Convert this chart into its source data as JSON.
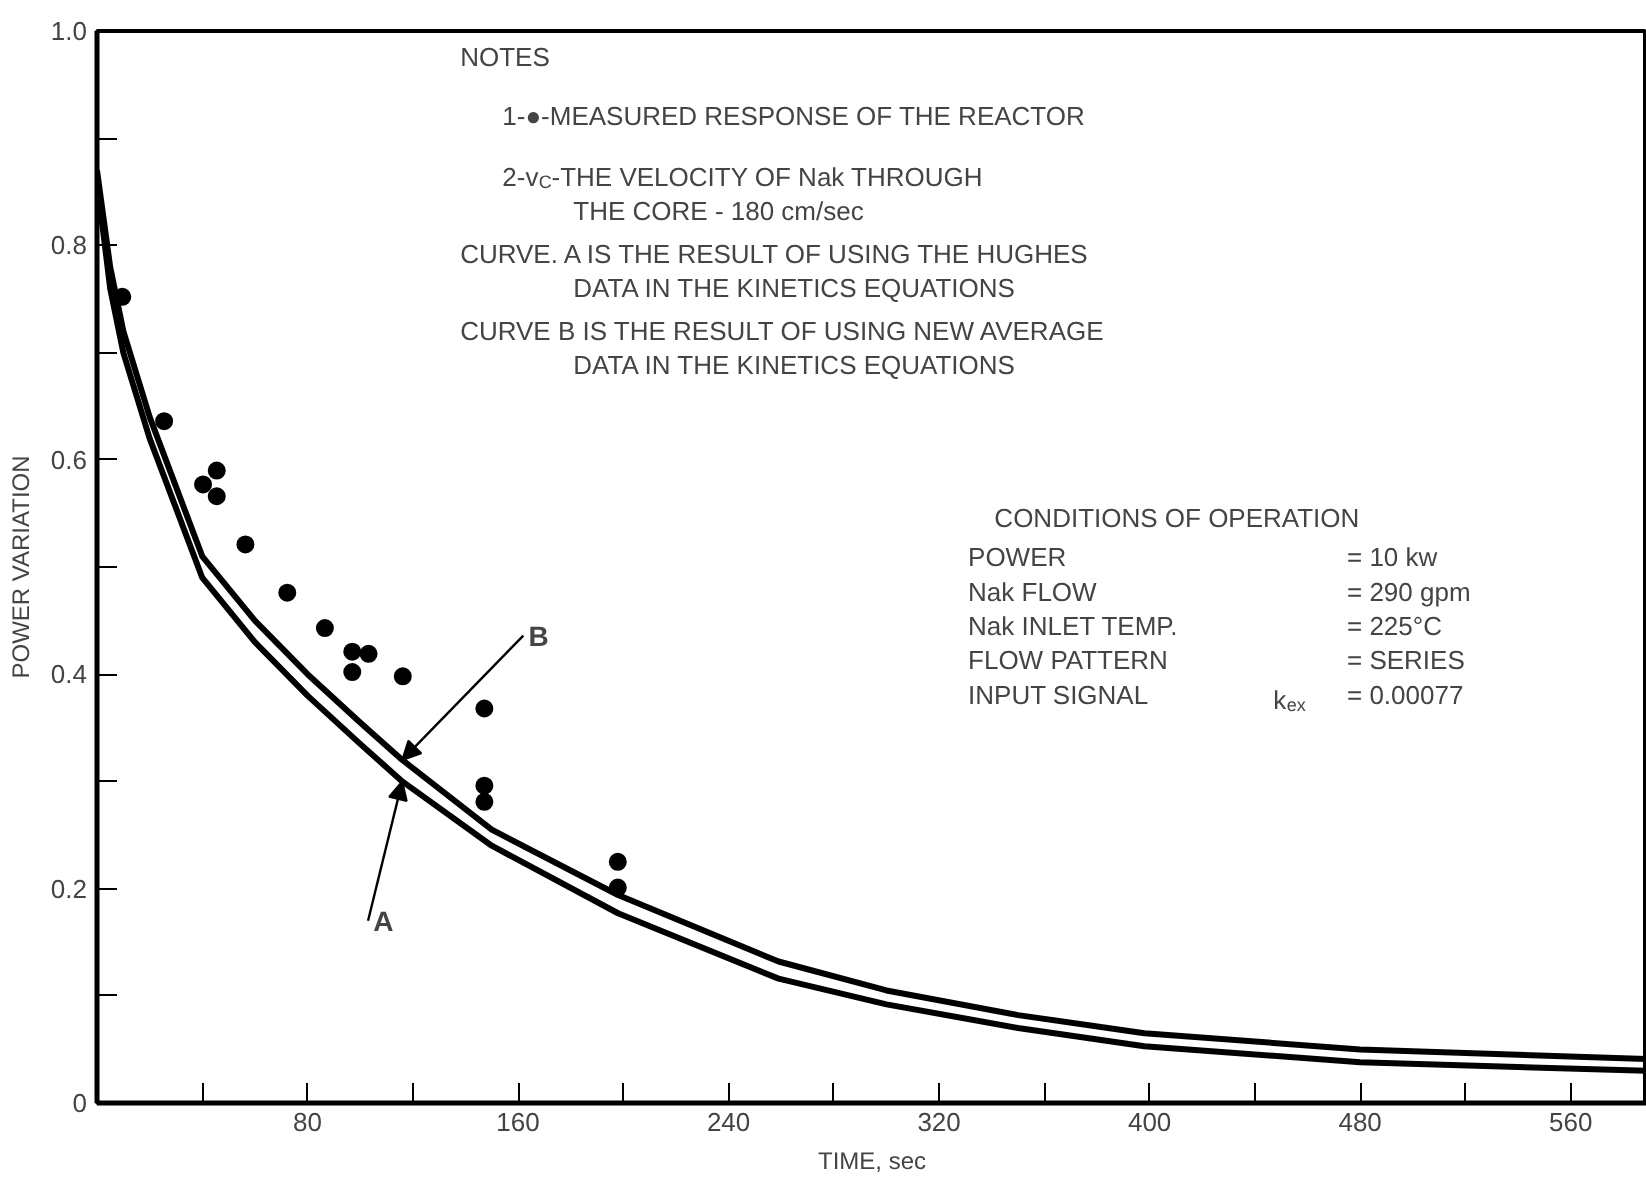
{
  "chart_data": {
    "type": "line",
    "xlabel": "TIME, sec",
    "ylabel": "POWER VARIATION",
    "xlim": [
      0,
      589
    ],
    "ylim": [
      0,
      1.0
    ],
    "xticks": [
      {
        "value": 40,
        "label": null
      },
      80,
      {
        "value": 120,
        "label": null
      },
      160,
      {
        "value": 200,
        "label": null
      },
      240,
      {
        "value": 280,
        "label": null
      },
      320,
      {
        "value": 360,
        "label": null
      },
      400,
      {
        "value": 440,
        "label": null
      },
      480,
      {
        "value": 520,
        "label": null
      },
      560
    ],
    "yticks": [
      0,
      {
        "value": 0.1,
        "label": null
      },
      0.2,
      {
        "value": 0.3,
        "label": null
      },
      0.4,
      {
        "value": 0.5,
        "label": null
      },
      0.6,
      {
        "value": 0.7,
        "label": null
      },
      0.8,
      {
        "value": 0.9,
        "label": null
      },
      {
        "value": 1.0,
        "label": "1.0"
      }
    ],
    "grid": false,
    "series": [
      {
        "color": "#000000",
        "marker": "none",
        "line_style": "solid",
        "x": [
          0,
          5,
          10,
          20,
          40,
          60,
          80,
          100,
          116,
          150,
          198,
          259,
          300,
          350,
          398,
          480,
          589
        ],
        "values": [
          0.86,
          0.76,
          0.7,
          0.62,
          0.49,
          0.43,
          0.38,
          0.335,
          0.3,
          0.24,
          0.177,
          0.116,
          0.092,
          0.07,
          0.053,
          0.038,
          0.03
        ]
      },
      {
        "color": "#000000",
        "marker": "none",
        "line_style": "solid",
        "x": [
          0,
          5,
          10,
          20,
          40,
          60,
          80,
          100,
          116,
          150,
          198,
          259,
          300,
          350,
          398,
          480,
          589
        ],
        "values": [
          0.87,
          0.78,
          0.72,
          0.64,
          0.51,
          0.45,
          0.4,
          0.355,
          0.32,
          0.255,
          0.194,
          0.132,
          0.105,
          0.082,
          0.065,
          0.05,
          0.041
        ]
      },
      {
        "type": "scatter",
        "color": "#000000",
        "marker": "circle",
        "x": [
          9.6,
          25.5,
          40.3,
          45.5,
          45.5,
          56.4,
          72.3,
          86.6,
          97,
          103.2,
          97,
          116.2,
          147.2,
          147.2,
          147.2,
          197.9,
          197.9
        ],
        "values": [
          0.752,
          0.636,
          0.577,
          0.59,
          0.566,
          0.521,
          0.476,
          0.443,
          0.421,
          0.419,
          0.402,
          0.398,
          0.368,
          0.296,
          0.281,
          0.225,
          0.201
        ]
      }
    ],
    "annotations": [
      "NOTES",
      "1-●-MEASURED RESPONSE OF THE REACTOR",
      "2-v$_{C}$-THE VELOCITY OF Nak THROUGH\nTHE CORE - 180 cm/sec",
      "CURVE. A IS THE RESULT OF USING THE HUGHES\nDATA IN THE KINETICS EQUATIONS",
      "CURVE B IS THE RESULT OF USING NEW AVERAGE\nDATA IN THE KINETICS EQUATIONS",
      "CONDITIONS OF OPERATION",
      "POWER",
      "Nak FLOW",
      "Nak INLET TEMP.",
      "FLOW PATTERN",
      "INPUT SIGNAL",
      "k$_{ex}$",
      "= 10 kw",
      "= 290 gpm",
      "= 225°C",
      "= SERIES",
      "= 0.00077",
      {
        "text": "A",
        "x": 116,
        "y": 0.3
      },
      {
        "text": "B",
        "x": 116,
        "y": 0.32
      }
    ]
  }
}
